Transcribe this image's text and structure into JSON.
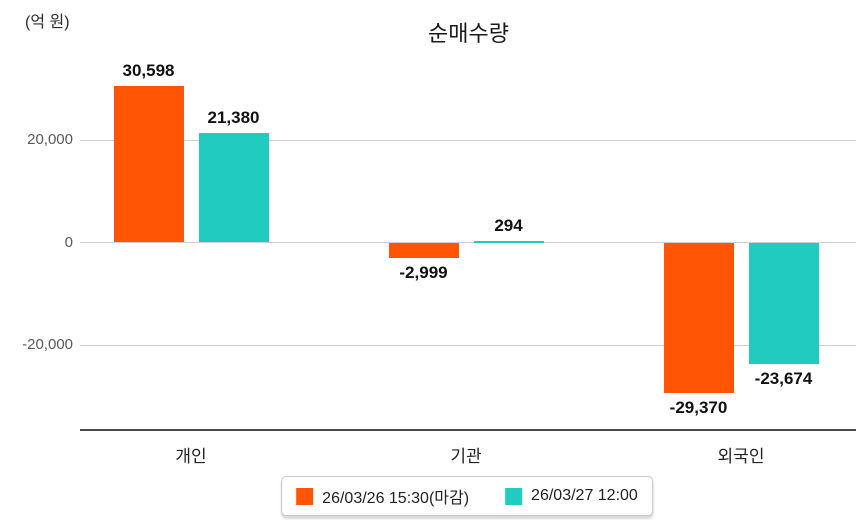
{
  "title": "순매수량",
  "unit_label": "(억 원)",
  "chart_data": {
    "type": "bar",
    "title": "순매수량",
    "ylabel": "(억 원)",
    "categories": [
      "개인",
      "기관",
      "외국인"
    ],
    "series": [
      {
        "name": "26/03/26 15:30(마감)",
        "color": "#ff5504",
        "values": [
          30598,
          -2999,
          -29370
        ],
        "value_labels": [
          "30,598",
          "-2,999",
          "-29,370"
        ]
      },
      {
        "name": "26/03/27 12:00",
        "color": "#21cbc0",
        "values": [
          21380,
          294,
          -23674
        ],
        "value_labels": [
          "21,380",
          "294",
          "-23,674"
        ]
      }
    ],
    "y_axis": {
      "ticks": [
        20000,
        0,
        -20000
      ],
      "tick_labels": [
        "20,000",
        "0",
        "-20,000"
      ],
      "ylim": [
        -36500,
        36500
      ]
    },
    "grid": true,
    "legend_position": "bottom"
  }
}
